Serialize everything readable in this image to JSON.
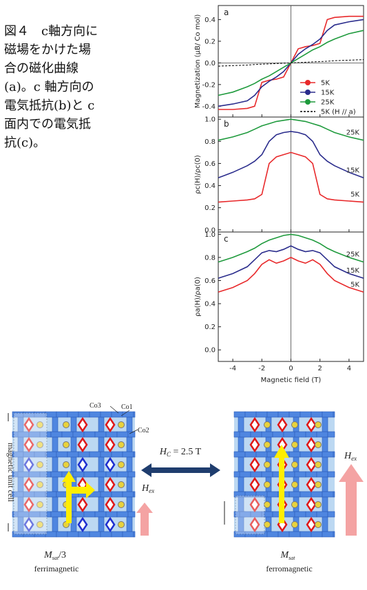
{
  "caption": "図４　c軸方向に磁場をかけた場合の磁化曲線(a)。c 軸方向の電気抵抗(b)と c 面内での電気抵抗(c)。",
  "chart_data": [
    {
      "type": "line",
      "panel_label": "a",
      "ylabel": "Magnetization (μB/ Co mol)",
      "x": [
        -5,
        -4,
        -3,
        -2.5,
        -2,
        -1.5,
        -1,
        -0.5,
        0,
        0.5,
        1,
        1.5,
        2,
        2.5,
        3,
        4,
        5
      ],
      "xlim": [
        -5,
        5
      ],
      "xticks": [
        -4,
        -2,
        0,
        2,
        4
      ],
      "ylim": [
        -0.5,
        0.53
      ],
      "yticks": [
        -0.4,
        -0.2,
        {
          "value": 0,
          "label": "0.0"
        },
        0.2,
        0.4
      ],
      "legend": "lower right",
      "series": [
        {
          "name": "5K",
          "color": "#e8282a",
          "linestyle": "solid",
          "marker": "o",
          "values": [
            -0.43,
            -0.43,
            -0.42,
            -0.4,
            -0.18,
            -0.16,
            -0.15,
            -0.13,
            0,
            0.13,
            0.15,
            0.16,
            0.18,
            0.4,
            0.42,
            0.43,
            0.43
          ]
        },
        {
          "name": "15K",
          "color": "#2a2c8c",
          "linestyle": "solid",
          "marker": "o",
          "values": [
            -0.4,
            -0.38,
            -0.35,
            -0.3,
            -0.22,
            -0.17,
            -0.13,
            -0.08,
            0,
            0.08,
            0.13,
            0.17,
            0.22,
            0.3,
            0.35,
            0.38,
            0.4
          ]
        },
        {
          "name": "25K",
          "color": "#1e9a3c",
          "linestyle": "solid",
          "marker": "o",
          "values": [
            -0.3,
            -0.27,
            -0.22,
            -0.19,
            -0.15,
            -0.12,
            -0.08,
            -0.04,
            0,
            0.04,
            0.08,
            0.12,
            0.15,
            0.19,
            0.22,
            0.27,
            0.3
          ]
        },
        {
          "name": "5K (H // a)",
          "color": "#000000",
          "linestyle": "dashed",
          "marker": "none",
          "values": [
            -0.03,
            -0.025,
            -0.02,
            -0.015,
            -0.012,
            -0.009,
            -0.006,
            -0.003,
            0,
            0.003,
            0.006,
            0.009,
            0.012,
            0.015,
            0.02,
            0.025,
            0.03
          ]
        }
      ]
    },
    {
      "type": "line",
      "panel_label": "b",
      "ylabel": "ρc(H)/ρc(0)",
      "x": [
        -5,
        -4,
        -3,
        -2.5,
        -2,
        -1.5,
        -1,
        -0.5,
        0,
        0.5,
        1,
        1.5,
        2,
        2.5,
        3,
        4,
        5
      ],
      "xlim": [
        -5,
        5
      ],
      "xticks": [
        -4,
        -2,
        0,
        2,
        4
      ],
      "ylim": [
        -0.02,
        1.02
      ],
      "yticks": [
        {
          "value": 0,
          "label": "0.0"
        },
        0.2,
        0.4,
        0.6,
        0.8,
        {
          "value": 1,
          "label": "1.0"
        }
      ],
      "direct_labels": true,
      "series": [
        {
          "name": "25K",
          "color": "#1e9a3c",
          "linestyle": "solid",
          "marker": "none",
          "values": [
            0.81,
            0.84,
            0.88,
            0.91,
            0.94,
            0.96,
            0.98,
            0.99,
            1.0,
            0.99,
            0.98,
            0.96,
            0.94,
            0.91,
            0.88,
            0.84,
            0.81
          ]
        },
        {
          "name": "15K",
          "color": "#2a2c8c",
          "linestyle": "solid",
          "marker": "none",
          "values": [
            0.47,
            0.52,
            0.58,
            0.62,
            0.68,
            0.8,
            0.86,
            0.88,
            0.89,
            0.88,
            0.86,
            0.8,
            0.68,
            0.62,
            0.58,
            0.52,
            0.47
          ]
        },
        {
          "name": "5K",
          "color": "#e8282a",
          "linestyle": "solid",
          "marker": "none",
          "values": [
            0.25,
            0.26,
            0.27,
            0.28,
            0.32,
            0.6,
            0.66,
            0.68,
            0.7,
            0.68,
            0.66,
            0.6,
            0.32,
            0.28,
            0.27,
            0.26,
            0.25
          ]
        }
      ]
    },
    {
      "type": "line",
      "panel_label": "c",
      "ylabel": "ρa(H)/ρa(0)",
      "xlabel": "Magnetic field (T)",
      "x": [
        -5,
        -4,
        -3,
        -2.5,
        -2,
        -1.5,
        -1,
        -0.5,
        0,
        0.5,
        1,
        1.5,
        2,
        2.5,
        3,
        4,
        5
      ],
      "xlim": [
        -5,
        5
      ],
      "xticks": [
        -4,
        -2,
        0,
        2,
        4
      ],
      "ylim": [
        -0.1,
        1.02
      ],
      "yticks": [
        {
          "value": 0,
          "label": "0.0"
        },
        0.2,
        0.4,
        0.6,
        0.8,
        {
          "value": 1,
          "label": "1.0"
        }
      ],
      "direct_labels": true,
      "series": [
        {
          "name": "25K",
          "color": "#1e9a3c",
          "linestyle": "solid",
          "marker": "none",
          "values": [
            0.76,
            0.8,
            0.85,
            0.88,
            0.92,
            0.95,
            0.97,
            0.99,
            1.0,
            0.99,
            0.97,
            0.95,
            0.92,
            0.88,
            0.85,
            0.8,
            0.76
          ]
        },
        {
          "name": "15K",
          "color": "#2a2c8c",
          "linestyle": "solid",
          "marker": "none",
          "values": [
            0.62,
            0.66,
            0.72,
            0.78,
            0.84,
            0.86,
            0.85,
            0.87,
            0.9,
            0.87,
            0.85,
            0.86,
            0.84,
            0.78,
            0.72,
            0.66,
            0.62
          ]
        },
        {
          "name": "5K",
          "color": "#e8282a",
          "linestyle": "solid",
          "marker": "none",
          "values": [
            0.5,
            0.54,
            0.6,
            0.66,
            0.74,
            0.78,
            0.75,
            0.77,
            0.8,
            0.77,
            0.75,
            0.78,
            0.74,
            0.66,
            0.6,
            0.54,
            0.5
          ]
        }
      ]
    }
  ],
  "diagram": {
    "co3": "Co3",
    "co1": "Co1",
    "co2": "Co2",
    "unit_cell": "magnetic unit cell",
    "coercive": {
      "symbol": "H",
      "subscript": "C",
      "suffix": " = 2.5 T"
    },
    "left": {
      "field": {
        "symbol": "H",
        "subscript": "ex"
      },
      "moment": {
        "symbol": "M",
        "subscript": "sat",
        "suffix": "/3"
      },
      "state": "ferrimagnetic"
    },
    "right": {
      "field": {
        "symbol": "H",
        "subscript": "ex"
      },
      "moment": {
        "symbol": "M",
        "subscript": "sat"
      },
      "state": "ferromagnetic"
    }
  }
}
